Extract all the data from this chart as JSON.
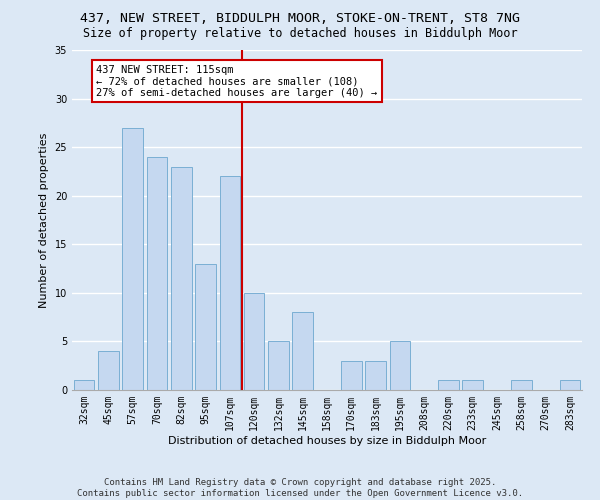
{
  "title1": "437, NEW STREET, BIDDULPH MOOR, STOKE-ON-TRENT, ST8 7NG",
  "title2": "Size of property relative to detached houses in Biddulph Moor",
  "xlabel": "Distribution of detached houses by size in Biddulph Moor",
  "ylabel": "Number of detached properties",
  "categories": [
    "32sqm",
    "45sqm",
    "57sqm",
    "70sqm",
    "82sqm",
    "95sqm",
    "107sqm",
    "120sqm",
    "132sqm",
    "145sqm",
    "158sqm",
    "170sqm",
    "183sqm",
    "195sqm",
    "208sqm",
    "220sqm",
    "233sqm",
    "245sqm",
    "258sqm",
    "270sqm",
    "283sqm"
  ],
  "values": [
    1,
    4,
    27,
    24,
    23,
    13,
    22,
    10,
    5,
    8,
    0,
    3,
    3,
    5,
    0,
    1,
    1,
    0,
    1,
    0,
    1
  ],
  "bar_color": "#c5d8f0",
  "bar_edge_color": "#7aafd4",
  "vline_x_idx": 6.5,
  "vline_color": "#cc0000",
  "annotation_text": "437 NEW STREET: 115sqm\n← 72% of detached houses are smaller (108)\n27% of semi-detached houses are larger (40) →",
  "annotation_box_color": "#ffffff",
  "annotation_edge_color": "#cc0000",
  "ylim": [
    0,
    35
  ],
  "yticks": [
    0,
    5,
    10,
    15,
    20,
    25,
    30,
    35
  ],
  "bg_color": "#dce8f5",
  "plot_bg_color": "#dce8f5",
  "footer": "Contains HM Land Registry data © Crown copyright and database right 2025.\nContains public sector information licensed under the Open Government Licence v3.0.",
  "grid_color": "#ffffff",
  "title_fontsize": 9.5,
  "subtitle_fontsize": 8.5,
  "label_fontsize": 8,
  "tick_fontsize": 7,
  "annotation_fontsize": 7.5,
  "footer_fontsize": 6.5
}
